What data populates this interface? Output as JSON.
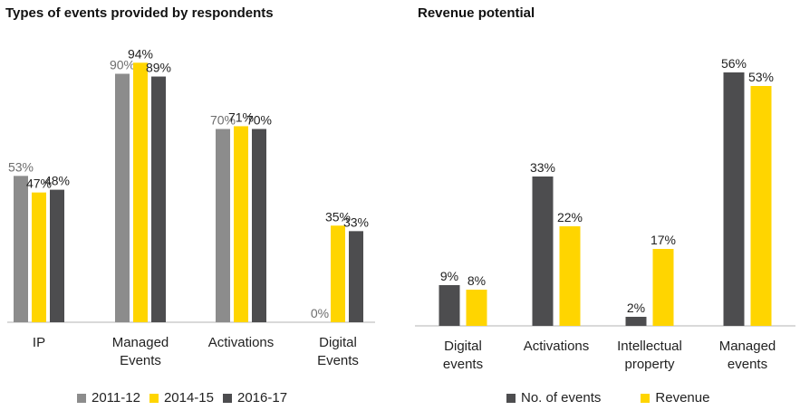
{
  "colors": {
    "light_gray": "#8c8c8c",
    "yellow": "#ffd500",
    "dark_gray": "#4d4d4f",
    "axis": "#b3b3b3"
  },
  "chart_data": [
    {
      "type": "bar",
      "title": "Types of events provided by respondents",
      "categories": [
        "IP",
        "Managed Events",
        "Activations",
        "Digital Events"
      ],
      "series": [
        {
          "name": "2011-12",
          "values": [
            53,
            90,
            70,
            0
          ],
          "color": "#8c8c8c"
        },
        {
          "name": "2014-15",
          "values": [
            47,
            94,
            71,
            35
          ],
          "color": "#ffd500"
        },
        {
          "name": "2016-17",
          "values": [
            48,
            89,
            70,
            33
          ],
          "color": "#4d4d4f"
        }
      ],
      "value_format": "percent",
      "ylim": [
        0,
        100
      ],
      "grid": false,
      "legend_position": "bottom"
    },
    {
      "type": "bar",
      "title": "Revenue potential",
      "categories": [
        "Digital events",
        "Activations",
        "Intellectual property",
        "Managed events"
      ],
      "series": [
        {
          "name": "No. of events",
          "values": [
            9,
            33,
            2,
            56
          ],
          "color": "#4d4d4f"
        },
        {
          "name": "Revenue",
          "values": [
            8,
            22,
            17,
            53
          ],
          "color": "#ffd500"
        }
      ],
      "value_format": "percent",
      "ylim": [
        0,
        60
      ],
      "grid": false,
      "legend_position": "bottom"
    }
  ]
}
